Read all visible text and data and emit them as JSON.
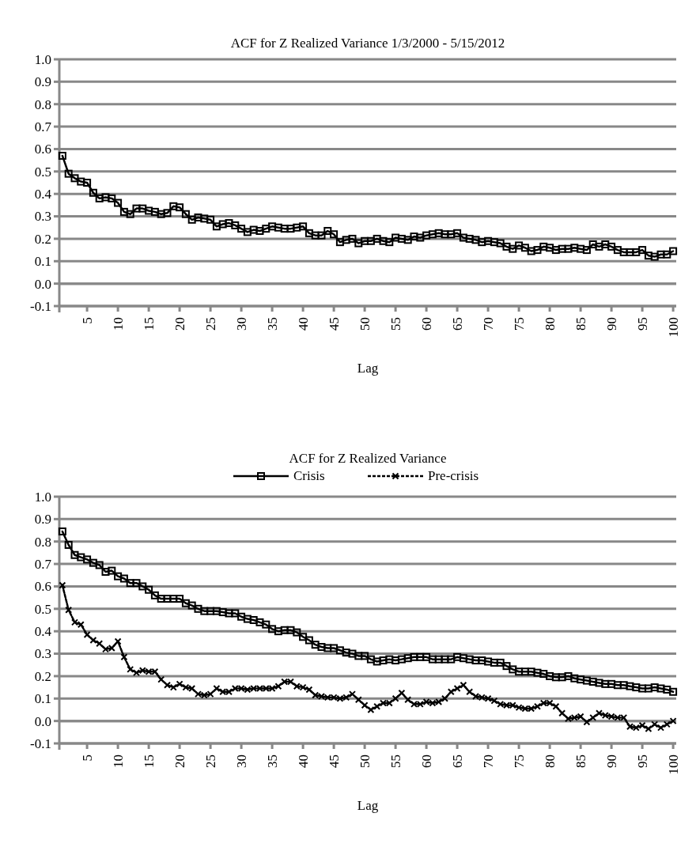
{
  "chart_data": [
    {
      "type": "line",
      "title": "ACF for Z Realized Variance 1/3/2000 - 5/15/2012",
      "xlabel": "Lag",
      "x": [
        1,
        2,
        3,
        4,
        5,
        6,
        7,
        8,
        9,
        10,
        11,
        12,
        13,
        14,
        15,
        16,
        17,
        18,
        19,
        20,
        21,
        22,
        23,
        24,
        25,
        26,
        27,
        28,
        29,
        30,
        31,
        32,
        33,
        34,
        35,
        36,
        37,
        38,
        39,
        40,
        41,
        42,
        43,
        44,
        45,
        46,
        47,
        48,
        49,
        50,
        51,
        52,
        53,
        54,
        55,
        56,
        57,
        58,
        59,
        60,
        61,
        62,
        63,
        64,
        65,
        66,
        67,
        68,
        69,
        70,
        71,
        72,
        73,
        74,
        75,
        76,
        77,
        78,
        79,
        80,
        81,
        82,
        83,
        84,
        85,
        86,
        87,
        88,
        89,
        90,
        91,
        92,
        93,
        94,
        95,
        96,
        97,
        98,
        99,
        100
      ],
      "xlim": [
        0.5,
        100.5
      ],
      "xticks": [
        5,
        10,
        15,
        20,
        25,
        30,
        35,
        40,
        45,
        50,
        55,
        60,
        65,
        70,
        75,
        80,
        85,
        90,
        95,
        100
      ],
      "ylim": [
        -0.1,
        1.0
      ],
      "yticks": [
        {
          "value": -0.1,
          "label": "-0.1"
        },
        {
          "value": 0,
          "label": "0.0"
        },
        {
          "value": 0.1,
          "label": "0.1"
        },
        {
          "value": 0.2,
          "label": "0.2"
        },
        {
          "value": 0.3,
          "label": "0.3"
        },
        {
          "value": 0.4,
          "label": "0.4"
        },
        {
          "value": 0.5,
          "label": "0.5"
        },
        {
          "value": 0.6,
          "label": "0.6"
        },
        {
          "value": 0.7,
          "label": "0.7"
        },
        {
          "value": 0.8,
          "label": "0.8"
        },
        {
          "value": 0.9,
          "label": "0.9"
        },
        {
          "value": 1.0,
          "label": "1.0"
        }
      ],
      "grid": "y",
      "legend": false,
      "series": [
        {
          "color": "#000000",
          "marker": "square",
          "line_style": "solid",
          "values": [
            0.57,
            0.49,
            0.47,
            0.455,
            0.45,
            0.405,
            0.38,
            0.385,
            0.38,
            0.36,
            0.32,
            0.31,
            0.335,
            0.335,
            0.325,
            0.32,
            0.31,
            0.315,
            0.345,
            0.34,
            0.31,
            0.285,
            0.295,
            0.29,
            0.285,
            0.255,
            0.265,
            0.27,
            0.26,
            0.245,
            0.23,
            0.24,
            0.235,
            0.245,
            0.255,
            0.25,
            0.245,
            0.245,
            0.25,
            0.255,
            0.225,
            0.215,
            0.215,
            0.235,
            0.22,
            0.185,
            0.195,
            0.2,
            0.18,
            0.19,
            0.19,
            0.2,
            0.19,
            0.185,
            0.205,
            0.2,
            0.195,
            0.21,
            0.205,
            0.215,
            0.22,
            0.225,
            0.22,
            0.22,
            0.225,
            0.205,
            0.2,
            0.195,
            0.185,
            0.19,
            0.185,
            0.18,
            0.165,
            0.155,
            0.17,
            0.16,
            0.145,
            0.15,
            0.165,
            0.16,
            0.15,
            0.155,
            0.155,
            0.16,
            0.155,
            0.15,
            0.175,
            0.165,
            0.175,
            0.165,
            0.15,
            0.14,
            0.14,
            0.14,
            0.15,
            0.125,
            0.12,
            0.13,
            0.13,
            0.145
          ]
        }
      ]
    },
    {
      "type": "line",
      "title": "ACF for Z Realized Variance",
      "xlabel": "Lag",
      "x": [
        1,
        2,
        3,
        4,
        5,
        6,
        7,
        8,
        9,
        10,
        11,
        12,
        13,
        14,
        15,
        16,
        17,
        18,
        19,
        20,
        21,
        22,
        23,
        24,
        25,
        26,
        27,
        28,
        29,
        30,
        31,
        32,
        33,
        34,
        35,
        36,
        37,
        38,
        39,
        40,
        41,
        42,
        43,
        44,
        45,
        46,
        47,
        48,
        49,
        50,
        51,
        52,
        53,
        54,
        55,
        56,
        57,
        58,
        59,
        60,
        61,
        62,
        63,
        64,
        65,
        66,
        67,
        68,
        69,
        70,
        71,
        72,
        73,
        74,
        75,
        76,
        77,
        78,
        79,
        80,
        81,
        82,
        83,
        84,
        85,
        86,
        87,
        88,
        89,
        90,
        91,
        92,
        93,
        94,
        95,
        96,
        97,
        98,
        99,
        100
      ],
      "xlim": [
        0.5,
        100.5
      ],
      "xticks": [
        5,
        10,
        15,
        20,
        25,
        30,
        35,
        40,
        45,
        50,
        55,
        60,
        65,
        70,
        75,
        80,
        85,
        90,
        95,
        100
      ],
      "ylim": [
        -0.1,
        1.0
      ],
      "yticks": [
        {
          "value": -0.1,
          "label": "-0.1"
        },
        {
          "value": 0,
          "label": "0.0"
        },
        {
          "value": 0.1,
          "label": "0.1"
        },
        {
          "value": 0.2,
          "label": "0.2"
        },
        {
          "value": 0.3,
          "label": "0.3"
        },
        {
          "value": 0.4,
          "label": "0.4"
        },
        {
          "value": 0.5,
          "label": "0.5"
        },
        {
          "value": 0.6,
          "label": "0.6"
        },
        {
          "value": 0.7,
          "label": "0.7"
        },
        {
          "value": 0.8,
          "label": "0.8"
        },
        {
          "value": 0.9,
          "label": "0.9"
        },
        {
          "value": 1.0,
          "label": "1.0"
        }
      ],
      "grid": "y",
      "legend": "top",
      "series": [
        {
          "name": "Crisis",
          "color": "#000000",
          "marker": "square",
          "line_style": "solid",
          "values": [
            0.845,
            0.785,
            0.74,
            0.73,
            0.72,
            0.705,
            0.695,
            0.665,
            0.67,
            0.645,
            0.635,
            0.615,
            0.615,
            0.6,
            0.585,
            0.56,
            0.545,
            0.545,
            0.545,
            0.545,
            0.525,
            0.515,
            0.5,
            0.49,
            0.49,
            0.49,
            0.485,
            0.48,
            0.48,
            0.465,
            0.455,
            0.45,
            0.44,
            0.43,
            0.41,
            0.4,
            0.405,
            0.405,
            0.395,
            0.375,
            0.36,
            0.34,
            0.33,
            0.325,
            0.325,
            0.315,
            0.305,
            0.3,
            0.29,
            0.29,
            0.275,
            0.265,
            0.27,
            0.275,
            0.27,
            0.275,
            0.28,
            0.285,
            0.285,
            0.285,
            0.275,
            0.275,
            0.275,
            0.275,
            0.285,
            0.28,
            0.275,
            0.27,
            0.27,
            0.265,
            0.26,
            0.26,
            0.245,
            0.23,
            0.22,
            0.22,
            0.22,
            0.215,
            0.21,
            0.2,
            0.195,
            0.195,
            0.2,
            0.19,
            0.185,
            0.18,
            0.175,
            0.17,
            0.165,
            0.165,
            0.16,
            0.16,
            0.155,
            0.15,
            0.145,
            0.145,
            0.15,
            0.145,
            0.14,
            0.13
          ]
        },
        {
          "name": "Pre-crisis",
          "color": "#000000",
          "marker": "cross",
          "line_style": "dashed",
          "values": [
            0.605,
            0.495,
            0.44,
            0.43,
            0.385,
            0.36,
            0.345,
            0.32,
            0.325,
            0.355,
            0.285,
            0.23,
            0.215,
            0.225,
            0.22,
            0.22,
            0.185,
            0.16,
            0.15,
            0.165,
            0.15,
            0.145,
            0.12,
            0.115,
            0.12,
            0.145,
            0.13,
            0.13,
            0.145,
            0.145,
            0.14,
            0.145,
            0.145,
            0.145,
            0.145,
            0.155,
            0.175,
            0.175,
            0.155,
            0.15,
            0.14,
            0.115,
            0.11,
            0.105,
            0.105,
            0.1,
            0.105,
            0.12,
            0.095,
            0.07,
            0.05,
            0.065,
            0.08,
            0.08,
            0.1,
            0.125,
            0.095,
            0.075,
            0.075,
            0.085,
            0.08,
            0.085,
            0.1,
            0.13,
            0.145,
            0.16,
            0.13,
            0.11,
            0.105,
            0.1,
            0.09,
            0.075,
            0.07,
            0.07,
            0.06,
            0.055,
            0.055,
            0.065,
            0.08,
            0.08,
            0.065,
            0.035,
            0.01,
            0.015,
            0.02,
            -0.005,
            0.015,
            0.035,
            0.025,
            0.02,
            0.015,
            0.015,
            -0.025,
            -0.03,
            -0.02,
            -0.035,
            -0.015,
            -0.03,
            -0.015,
            0.0
          ]
        }
      ]
    }
  ]
}
